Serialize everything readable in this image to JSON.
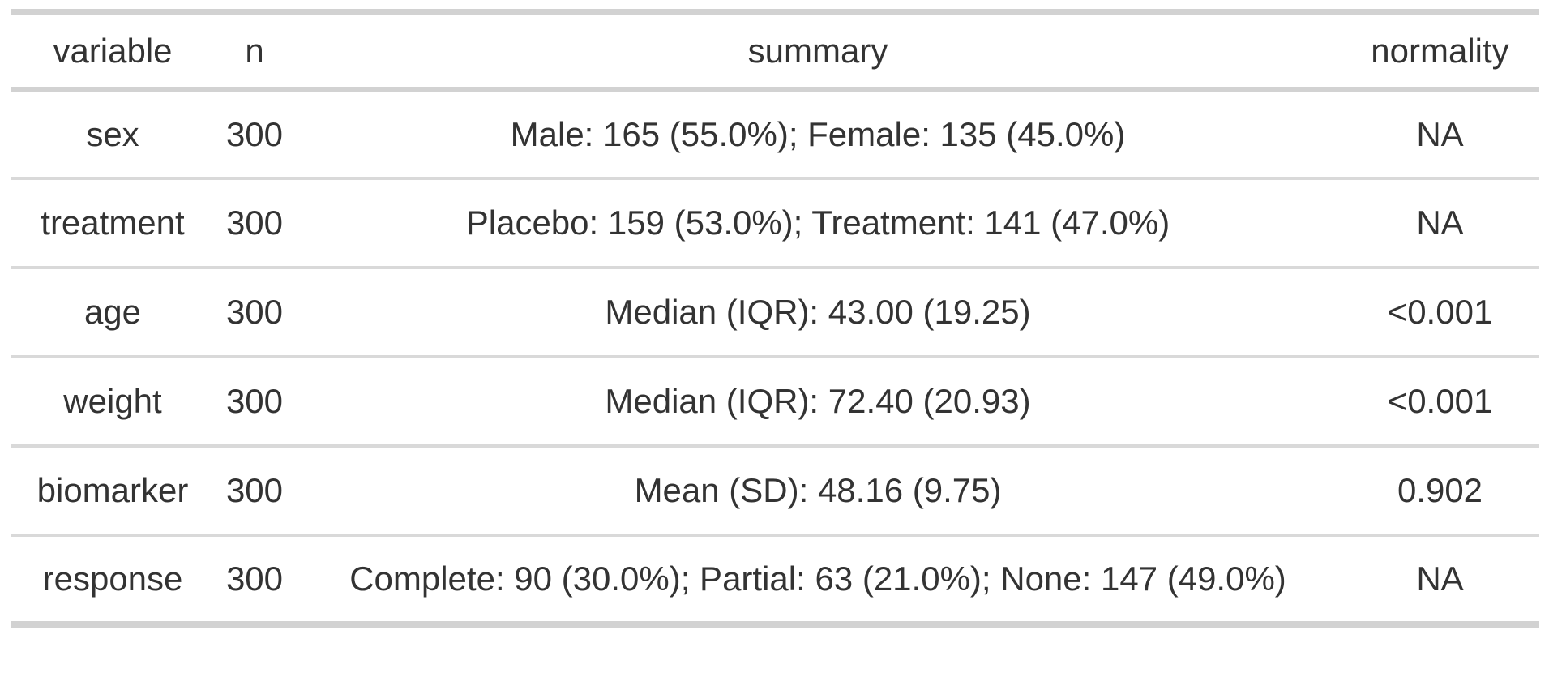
{
  "chart_data": {
    "type": "table",
    "title": "",
    "columns": [
      "variable",
      "n",
      "summary",
      "normality"
    ],
    "rows": [
      [
        "sex",
        "300",
        "Male: 165 (55.0%); Female: 135 (45.0%)",
        "NA"
      ],
      [
        "treatment",
        "300",
        "Placebo: 159 (53.0%); Treatment: 141 (47.0%)",
        "NA"
      ],
      [
        "age",
        "300",
        "Median (IQR): 43.00 (19.25)",
        "<0.001"
      ],
      [
        "weight",
        "300",
        "Median (IQR): 72.40 (20.93)",
        "<0.001"
      ],
      [
        "biomarker",
        "300",
        "Mean (SD): 48.16 (9.75)",
        "0.902"
      ],
      [
        "response",
        "300",
        "Complete: 90 (30.0%); Partial: 63 (21.0%); None: 147 (49.0%)",
        "NA"
      ]
    ],
    "layout_hints": {
      "all_cells_centered": true,
      "horizontal_rules_only": true,
      "grid": "off"
    }
  },
  "colors": {
    "background": "#ffffff",
    "text": "#333333",
    "rule_heavy": "#d2d2d2",
    "rule_light": "#d9d9d9"
  }
}
